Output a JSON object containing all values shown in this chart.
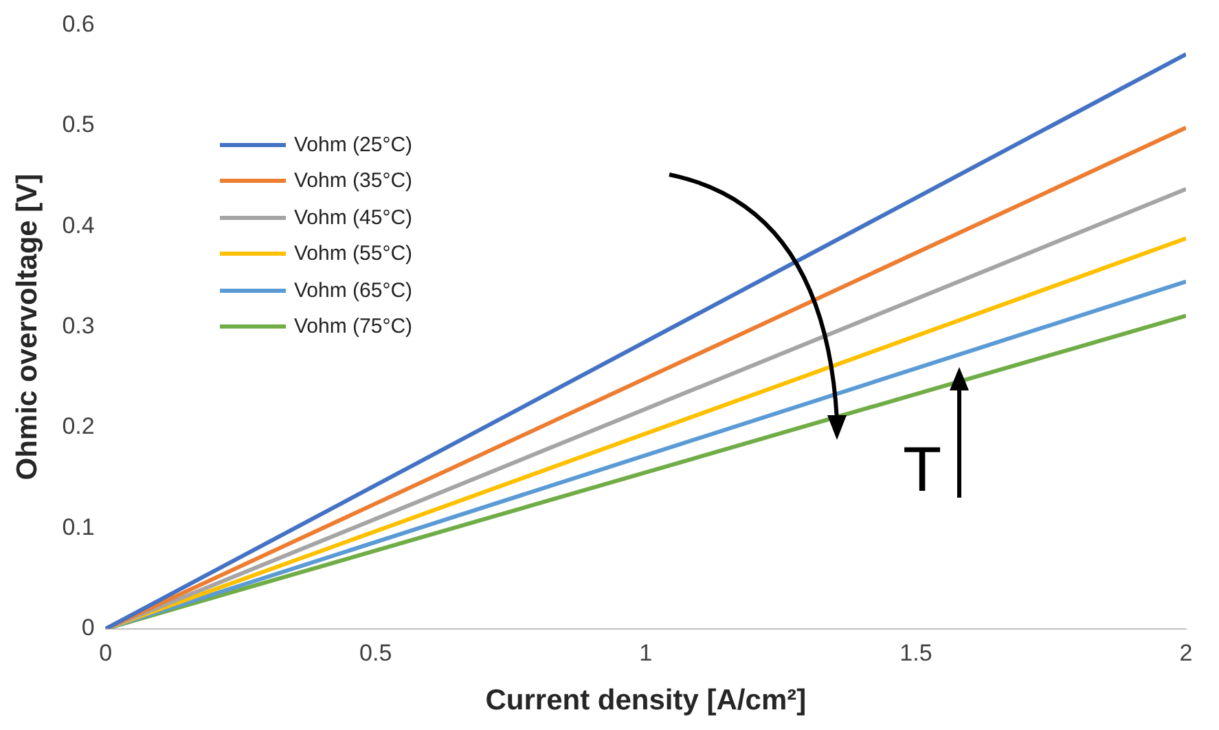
{
  "chart_data": {
    "type": "line",
    "xlabel": "Current density [A/cm²]",
    "ylabel": "Ohmic overvoltage [V]",
    "x": [
      0,
      2
    ],
    "xlim": [
      0,
      2
    ],
    "xticks": [
      0,
      0.5,
      1,
      1.5,
      2
    ],
    "ylim": [
      0,
      0.6
    ],
    "yticks": [
      0,
      0.1,
      0.2,
      0.3,
      0.4,
      0.5,
      0.6
    ],
    "grid": false,
    "legend": "left",
    "marker": "none",
    "line_style": "solid",
    "series": [
      {
        "name": "Vohm (25°C)",
        "color": "#4472c4",
        "values": [
          0,
          0.571
        ]
      },
      {
        "name": "Vohm (35°C)",
        "color": "#ed7d31",
        "values": [
          0,
          0.498
        ]
      },
      {
        "name": "Vohm (45°C)",
        "color": "#a5a5a5",
        "values": [
          0,
          0.437
        ]
      },
      {
        "name": "Vohm (55°C)",
        "color": "#ffc000",
        "values": [
          0,
          0.388
        ]
      },
      {
        "name": "Vohm (65°C)",
        "color": "#5b9bd5",
        "values": [
          0,
          0.345
        ]
      },
      {
        "name": "Vohm (75°C)",
        "color": "#70ad47",
        "values": [
          0,
          0.311
        ]
      }
    ],
    "annotations": [
      "T"
    ]
  }
}
